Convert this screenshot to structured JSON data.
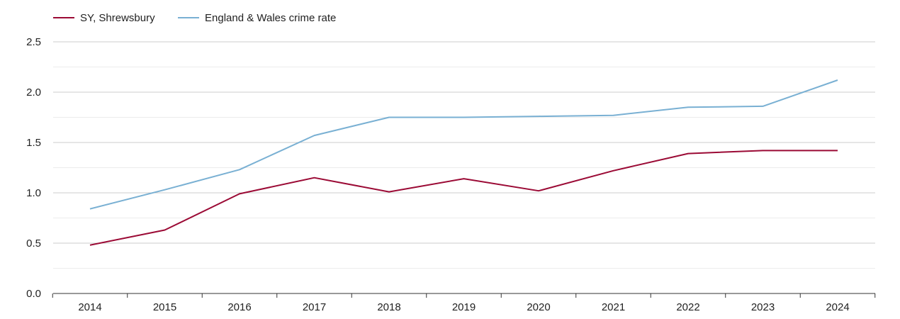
{
  "chart_data": {
    "type": "line",
    "title": "",
    "xlabel": "",
    "ylabel": "",
    "x": [
      "2014",
      "2015",
      "2016",
      "2017",
      "2018",
      "2019",
      "2020",
      "2021",
      "2022",
      "2023",
      "2024"
    ],
    "ylim": [
      0,
      2.5
    ],
    "y_ticks": [
      "0.0",
      "0.5",
      "1.0",
      "1.5",
      "2.0",
      "2.5"
    ],
    "grid": true,
    "legend_position": "top-left",
    "series": [
      {
        "name": "SY, Shrewsbury",
        "color": "#9b0a35",
        "values": [
          0.48,
          0.63,
          0.99,
          1.15,
          1.01,
          1.14,
          1.02,
          1.22,
          1.39,
          1.42,
          1.42
        ]
      },
      {
        "name": "England & Wales crime rate",
        "color": "#79b0d3",
        "values": [
          0.84,
          1.03,
          1.23,
          1.57,
          1.75,
          1.75,
          1.76,
          1.77,
          1.85,
          1.86,
          2.12
        ]
      }
    ]
  }
}
